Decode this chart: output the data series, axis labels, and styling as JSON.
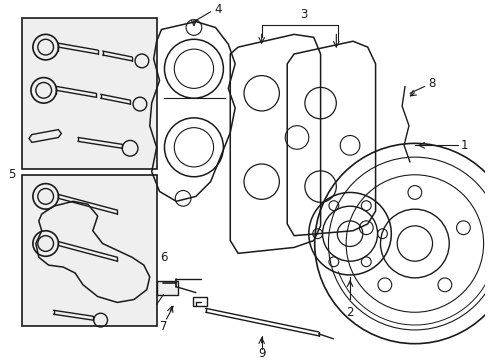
{
  "bg_color": "#ffffff",
  "line_color": "#1a1a1a",
  "box_fill": "#efefef",
  "figsize": [
    4.89,
    3.6
  ],
  "dpi": 100,
  "xlim": [
    0,
    489
  ],
  "ylim": [
    0,
    360
  ]
}
